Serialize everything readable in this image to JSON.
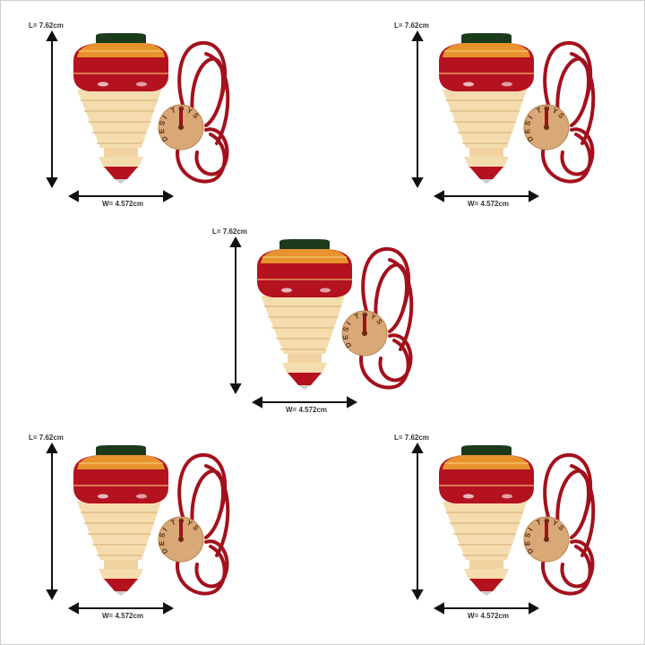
{
  "product": {
    "length_label": "L= 7.62cm",
    "width_label": "W= 4.572cm",
    "token_text": "DESI TOYS",
    "colors": {
      "cap": "#1c3a1c",
      "orange": "#e8922e",
      "red": "#b3121e",
      "wood": "#f4dcae",
      "rope": "#a3101c",
      "token": "#d9a877",
      "arrow": "#111111"
    }
  },
  "cells": [
    {
      "name": "top-left"
    },
    {
      "name": "top-right"
    },
    {
      "name": "center"
    },
    {
      "name": "bottom-left"
    },
    {
      "name": "bottom-right"
    }
  ]
}
